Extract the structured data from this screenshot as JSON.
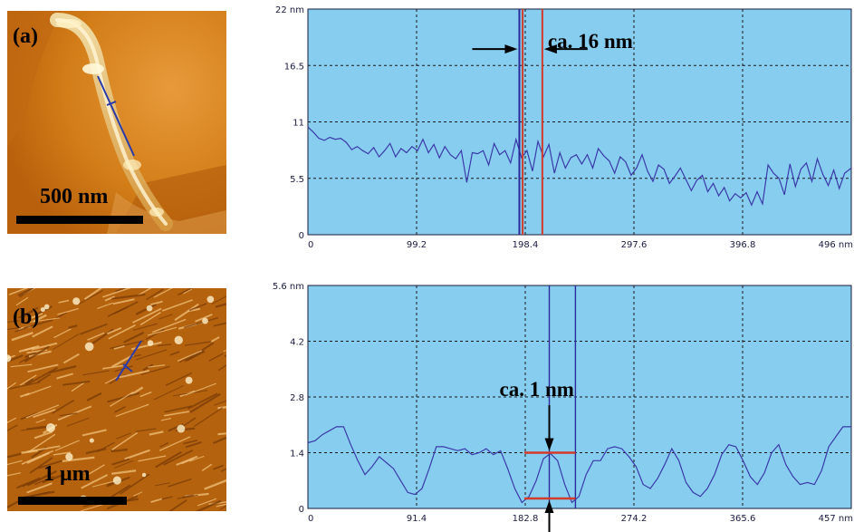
{
  "panels": [
    {
      "label": "(a)",
      "scale_bar": "500 nm",
      "annotation": "ca. 16 nm"
    },
    {
      "label": "(b)",
      "scale_bar": "1 μm",
      "annotation": "ca. 1 nm"
    }
  ],
  "colors": {
    "plot_background": "#87cdef",
    "profile_line": "#3a3aa8",
    "cursor_red": "#d23a2a",
    "cursor_blue": "#2a2a9a",
    "afm_a_base": "#c8700f",
    "afm_b_base": "#b5620f"
  },
  "chart_data": [
    {
      "type": "line",
      "panel": "(a)",
      "title": "",
      "xlabel": "",
      "ylabel": "",
      "x_unit": "nm",
      "y_unit": "nm",
      "xlim": [
        0,
        496
      ],
      "ylim": [
        0,
        22
      ],
      "x_ticks": [
        "0",
        "99.2",
        "198.4",
        "297.6",
        "396.8",
        "496 nm"
      ],
      "x_tick_values": [
        0,
        99.2,
        198.4,
        297.6,
        396.8,
        496
      ],
      "y_ticks": [
        "0",
        "5.5",
        "11",
        "16.5",
        "22 nm"
      ],
      "y_tick_values": [
        0,
        5.5,
        11,
        16.5,
        22
      ],
      "grid": true,
      "markers": {
        "red_vertical_lines_x": [
          196,
          214
        ],
        "blue_vertical_line_x": 193,
        "annotation": "ca. 16 nm"
      },
      "series": [
        {
          "x": [
            0,
            5,
            10,
            15,
            20,
            25,
            30,
            35,
            40,
            45,
            50,
            55,
            60,
            65,
            70,
            75,
            80,
            85,
            90,
            95,
            100,
            105,
            110,
            115,
            120,
            125,
            130,
            135,
            140,
            145,
            150,
            155,
            160,
            165,
            170,
            175,
            180,
            185,
            190,
            195,
            200,
            205,
            210,
            215,
            220,
            225,
            230,
            235,
            240,
            245,
            250,
            255,
            260,
            265,
            270,
            275,
            280,
            285,
            290,
            295,
            300,
            305,
            310,
            315,
            320,
            325,
            330,
            335,
            340,
            345,
            350,
            355,
            360,
            365,
            370,
            375,
            380,
            385,
            390,
            395,
            400,
            405,
            410,
            415,
            420,
            425,
            430,
            435,
            440,
            445,
            450,
            455,
            460,
            465,
            470,
            475,
            480,
            485,
            490,
            496
          ],
          "y": [
            10.5,
            10.0,
            9.4,
            9.2,
            9.5,
            9.3,
            9.4,
            9.0,
            8.3,
            8.6,
            8.2,
            7.9,
            8.5,
            7.6,
            8.2,
            8.9,
            7.6,
            8.4,
            8.0,
            8.6,
            8.2,
            9.3,
            8.0,
            8.8,
            7.5,
            8.6,
            7.8,
            7.4,
            8.2,
            5.1,
            8.0,
            7.9,
            8.2,
            6.8,
            8.9,
            7.8,
            8.2,
            7.0,
            9.3,
            7.5,
            8.2,
            6.2,
            9.1,
            7.6,
            8.8,
            6.0,
            8.0,
            6.5,
            7.5,
            7.8,
            6.9,
            7.8,
            6.5,
            8.4,
            7.7,
            7.2,
            6.0,
            7.6,
            7.1,
            5.8,
            6.5,
            7.8,
            6.2,
            5.2,
            6.8,
            6.4,
            5.0,
            5.7,
            6.5,
            5.4,
            4.3,
            5.3,
            5.8,
            4.2,
            5.0,
            3.8,
            4.6,
            3.3,
            4.0,
            3.6,
            4.1,
            2.9,
            4.2,
            3.0,
            6.8,
            6.0,
            5.5,
            3.9,
            6.9,
            4.7,
            6.4,
            7.0,
            5.2,
            7.4,
            5.9,
            4.8,
            6.3,
            4.5,
            6.0,
            6.5
          ]
        }
      ]
    },
    {
      "type": "line",
      "panel": "(b)",
      "title": "",
      "xlabel": "",
      "ylabel": "",
      "x_unit": "nm",
      "y_unit": "nm",
      "xlim": [
        0,
        457
      ],
      "ylim": [
        0,
        5.6
      ],
      "x_ticks": [
        "0",
        "91.4",
        "182.8",
        "274.2",
        "365.6",
        "457 nm"
      ],
      "x_tick_values": [
        0,
        91.4,
        182.8,
        274.2,
        365.6,
        457
      ],
      "y_ticks": [
        "0",
        "1.4",
        "2.8",
        "4.2",
        "5.6 nm"
      ],
      "y_tick_values": [
        0,
        1.4,
        2.8,
        4.2,
        5.6
      ],
      "grid": true,
      "markers": {
        "blue_vertical_lines_x": [
          203,
          225
        ],
        "red_horizontal_segment_top": {
          "x": [
            182,
            225
          ],
          "y": 1.4
        },
        "red_horizontal_segment_bottom": {
          "x": [
            182,
            225
          ],
          "y": 0.25
        },
        "annotation": "ca. 1 nm"
      },
      "series": [
        {
          "x": [
            0,
            6,
            12,
            18,
            24,
            30,
            36,
            42,
            48,
            54,
            60,
            66,
            72,
            78,
            84,
            90,
            96,
            102,
            108,
            114,
            120,
            126,
            132,
            138,
            144,
            150,
            156,
            162,
            168,
            174,
            180,
            186,
            192,
            198,
            204,
            210,
            216,
            222,
            228,
            234,
            240,
            246,
            252,
            258,
            264,
            270,
            276,
            282,
            288,
            294,
            300,
            306,
            312,
            318,
            324,
            330,
            336,
            342,
            348,
            354,
            360,
            366,
            372,
            378,
            384,
            390,
            396,
            402,
            408,
            414,
            420,
            426,
            432,
            438,
            444,
            450,
            457
          ],
          "y": [
            1.65,
            1.7,
            1.85,
            1.95,
            2.05,
            2.05,
            1.6,
            1.2,
            0.85,
            1.05,
            1.3,
            1.15,
            1.0,
            0.7,
            0.4,
            0.35,
            0.5,
            1.0,
            1.55,
            1.55,
            1.5,
            1.45,
            1.5,
            1.35,
            1.4,
            1.5,
            1.35,
            1.45,
            1.0,
            0.5,
            0.15,
            0.3,
            0.7,
            1.25,
            1.38,
            1.2,
            0.6,
            0.15,
            0.3,
            0.85,
            1.2,
            1.2,
            1.5,
            1.55,
            1.5,
            1.3,
            1.05,
            0.6,
            0.5,
            0.75,
            1.1,
            1.5,
            1.2,
            0.65,
            0.4,
            0.3,
            0.5,
            0.85,
            1.35,
            1.6,
            1.55,
            1.2,
            0.8,
            0.6,
            0.9,
            1.4,
            1.6,
            1.1,
            0.8,
            0.6,
            0.65,
            0.6,
            0.95,
            1.55,
            1.8,
            2.05,
            2.05
          ]
        }
      ]
    }
  ]
}
